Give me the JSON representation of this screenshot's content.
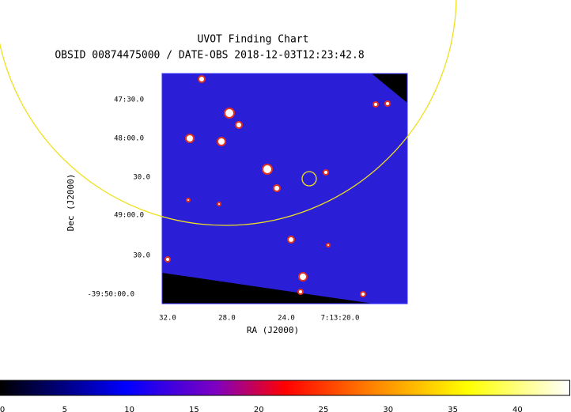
{
  "header": {
    "title": "UVOT Finding Chart",
    "subtitle": "OBSID 00874475000 / DATE-OBS 2018-12-03T12:23:42.8"
  },
  "axes": {
    "y_label": "Dec (J2000)",
    "x_label": "RA (J2000)",
    "y_ticks": [
      "47:30.0",
      "48:00.0",
      "30.0",
      "49:00.0",
      "30.0",
      "-39:50:00.0"
    ],
    "x_ticks": [
      "32.0",
      "28.0",
      "24.0",
      "7:13:20.0"
    ]
  },
  "colorbar": {
    "ticks": [
      "0",
      "5",
      "10",
      "15",
      "20",
      "25",
      "30",
      "35",
      "40"
    ]
  }
}
